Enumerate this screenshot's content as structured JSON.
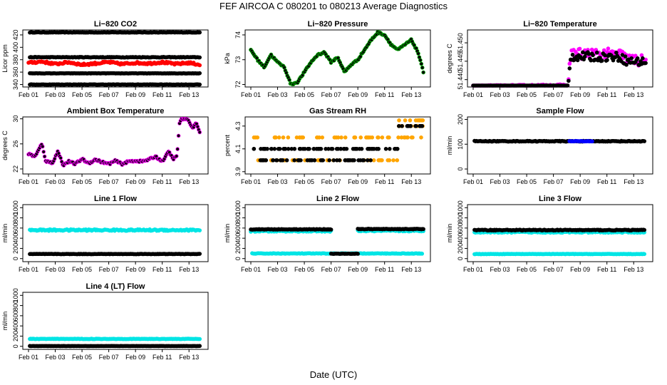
{
  "title": "FEF   AIRCOA C   080201 to 080213   Average Diagnostics",
  "x_axis_label": "Date (UTC)",
  "colors": {
    "black": "#000000",
    "red": "#ff0000",
    "magenta": "#ff00ff",
    "green": "#00aa00",
    "orange": "#ffa500",
    "blue": "#0000ff",
    "cyan": "#00e5e5"
  },
  "chart_data": [
    {
      "id": "co2",
      "type": "scatter",
      "title": "Li−820 CO2",
      "ylabel": "Licor ppm",
      "x_ticks": [
        "Feb 01",
        "Feb 03",
        "Feb 05",
        "Feb 07",
        "Feb 09",
        "Feb 11",
        "Feb 13"
      ],
      "xlim": [
        0,
        13
      ],
      "ylim": [
        336,
        428
      ],
      "y_ticks": [
        340,
        360,
        380,
        400,
        420
      ],
      "series": [
        {
          "name": "ref 1",
          "color": "black",
          "kind": "flat",
          "value": 424,
          "noise": 0.3
        },
        {
          "name": "ref 2",
          "color": "black",
          "kind": "flat",
          "value": 384,
          "noise": 0.5
        },
        {
          "name": "sample",
          "color": "red",
          "kind": "anchors",
          "noise": 1.6,
          "anchors": [
            [
              0,
              375
            ],
            [
              1,
              377
            ],
            [
              2,
              373
            ],
            [
              3,
              376
            ],
            [
              4,
              372
            ],
            [
              5,
              374
            ],
            [
              6,
              376
            ],
            [
              7,
              373
            ],
            [
              8,
              375
            ],
            [
              9,
              374
            ],
            [
              10,
              376
            ],
            [
              11,
              373
            ],
            [
              12,
              375
            ],
            [
              12.8,
              372
            ]
          ]
        },
        {
          "name": "ref 3",
          "color": "black",
          "kind": "flat",
          "value": 358,
          "noise": 0.3
        },
        {
          "name": "ref 4",
          "color": "black",
          "kind": "flat",
          "value": 340,
          "noise": 0.3
        }
      ]
    },
    {
      "id": "pressure",
      "type": "scatter",
      "title": "Li−820 Pressure",
      "ylabel": "kPa",
      "x_ticks": [
        "Feb 01",
        "Feb 03",
        "Feb 05",
        "Feb 07",
        "Feb 09",
        "Feb 11",
        "Feb 13"
      ],
      "xlim": [
        0,
        13
      ],
      "ylim": [
        71.9,
        74.2
      ],
      "y_ticks": [
        72.0,
        73.0,
        74.0
      ],
      "series": [
        {
          "name": "pressure",
          "color": "black",
          "edge": "green",
          "kind": "anchors",
          "noise": 0.03,
          "anchors": [
            [
              0,
              73.4
            ],
            [
              0.5,
              73.0
            ],
            [
              1,
              72.7
            ],
            [
              1.5,
              73.2
            ],
            [
              2,
              72.9
            ],
            [
              2.5,
              72.7
            ],
            [
              3,
              72.0
            ],
            [
              3.5,
              72.1
            ],
            [
              4,
              72.5
            ],
            [
              4.5,
              72.9
            ],
            [
              5,
              73.2
            ],
            [
              5.5,
              73.3
            ],
            [
              6,
              72.9
            ],
            [
              6.5,
              73.1
            ],
            [
              7,
              72.5
            ],
            [
              7.5,
              72.8
            ],
            [
              8,
              73.0
            ],
            [
              8.5,
              73.4
            ],
            [
              9,
              73.8
            ],
            [
              9.5,
              74.1
            ],
            [
              10,
              74.0
            ],
            [
              10.5,
              73.6
            ],
            [
              11,
              73.4
            ],
            [
              11.5,
              73.6
            ],
            [
              12,
              73.8
            ],
            [
              12.5,
              73.3
            ],
            [
              12.9,
              72.5
            ]
          ]
        }
      ]
    },
    {
      "id": "licor_temp",
      "type": "scatter",
      "title": "Li−820 Temperature",
      "ylabel": "degrees C",
      "x_ticks": [
        "Feb 01",
        "Feb 03",
        "Feb 05",
        "Feb 07",
        "Feb 09",
        "Feb 11",
        "Feb 13"
      ],
      "xlim": [
        0,
        13
      ],
      "ylim": [
        51.438,
        51.4535
      ],
      "y_ticks": [
        51.44,
        51.445,
        51.45
      ],
      "y_tick_labels": [
        "51.440",
        "51.445",
        "51.450"
      ],
      "series": [
        {
          "name": "hi",
          "color": "magenta",
          "kind": "steps",
          "noise": 0.0016,
          "anchors": [
            [
              0,
              51.4382
            ],
            [
              7.1,
              51.4385
            ],
            [
              7.3,
              51.447
            ],
            [
              11,
              51.4468
            ],
            [
              11.5,
              51.4455
            ],
            [
              12.9,
              51.445
            ]
          ]
        },
        {
          "name": "lo",
          "color": "black",
          "kind": "steps",
          "noise": 0.0012,
          "anchors": [
            [
              0,
              51.4381
            ],
            [
              7.1,
              51.4383
            ],
            [
              7.3,
              51.4463
            ],
            [
              11,
              51.4462
            ],
            [
              11.5,
              51.445
            ],
            [
              12.9,
              51.4448
            ]
          ]
        }
      ]
    },
    {
      "id": "box_temp",
      "type": "scatter",
      "title": "Ambient Box Temperature",
      "ylabel": "degrees C",
      "x_ticks": [
        "Feb 01",
        "Feb 03",
        "Feb 05",
        "Feb 07",
        "Feb 09",
        "Feb 11",
        "Feb 13"
      ],
      "xlim": [
        0,
        13
      ],
      "ylim": [
        21.2,
        30.3
      ],
      "y_ticks": [
        22,
        26,
        30
      ],
      "series": [
        {
          "name": "temp",
          "color": "black",
          "edge": "magenta",
          "kind": "anchors",
          "noise": 0.15,
          "anchors": [
            [
              0,
              24.4
            ],
            [
              0.5,
              24.0
            ],
            [
              1,
              26.0
            ],
            [
              1.3,
              23.2
            ],
            [
              1.8,
              23.0
            ],
            [
              2.2,
              24.8
            ],
            [
              2.6,
              22.6
            ],
            [
              3,
              23.2
            ],
            [
              3.5,
              22.8
            ],
            [
              4,
              23.6
            ],
            [
              4.5,
              22.9
            ],
            [
              5,
              23.5
            ],
            [
              5.5,
              23.1
            ],
            [
              6,
              22.8
            ],
            [
              6.5,
              23.3
            ],
            [
              7,
              22.8
            ],
            [
              7.5,
              23.2
            ],
            [
              8,
              23.3
            ],
            [
              8.5,
              23.2
            ],
            [
              9,
              23.5
            ],
            [
              9.5,
              24.0
            ],
            [
              10,
              23.2
            ],
            [
              10.5,
              24.8
            ],
            [
              10.8,
              23.6
            ],
            [
              11.1,
              24.0
            ],
            [
              11.3,
              29.5
            ],
            [
              11.5,
              30.0
            ],
            [
              12,
              29.7
            ],
            [
              12.3,
              28.4
            ],
            [
              12.5,
              29.4
            ],
            [
              12.8,
              28.0
            ]
          ]
        }
      ]
    },
    {
      "id": "rh",
      "type": "scatter",
      "title": "Gas Stream RH",
      "ylabel": "percent",
      "x_ticks": [
        "Feb 01",
        "Feb 03",
        "Feb 05",
        "Feb 07",
        "Feb 09",
        "Feb 11",
        "Feb 13"
      ],
      "xlim": [
        0,
        13
      ],
      "ylim": [
        3.88,
        4.38
      ],
      "y_ticks": [
        3.9,
        4.1,
        4.3
      ],
      "series": [
        {
          "name": "rh_orange",
          "color": "orange",
          "kind": "levels",
          "levels": [
            [
              0,
              11,
              4.0
            ],
            [
              0,
              11,
              4.2
            ],
            [
              11,
              12.9,
              4.2
            ],
            [
              11,
              12.9,
              4.3
            ],
            [
              11,
              12.9,
              4.35
            ]
          ]
        },
        {
          "name": "rh_black",
          "color": "black",
          "kind": "levels",
          "levels": [
            [
              0,
              11,
              4.1
            ],
            [
              11,
              12.9,
              4.3
            ],
            [
              0.5,
              5,
              4.0
            ],
            [
              5,
              9,
              4.0
            ]
          ]
        }
      ]
    },
    {
      "id": "sample_flow",
      "type": "scatter",
      "title": "Sample Flow",
      "ylabel": "ml/min",
      "x_ticks": [
        "Feb 01",
        "Feb 03",
        "Feb 05",
        "Feb 07",
        "Feb 09",
        "Feb 11",
        "Feb 13"
      ],
      "xlim": [
        0,
        13
      ],
      "ylim": [
        -20,
        210
      ],
      "y_ticks": [
        0,
        100,
        200
      ],
      "series": [
        {
          "name": "flow",
          "color": "black",
          "kind": "flat",
          "value": 112,
          "noise": 1.5
        },
        {
          "name": "flow_blue",
          "color": "blue",
          "kind": "segment",
          "from": 7.2,
          "to": 8.9,
          "value": 112,
          "noise": 1.0
        }
      ]
    },
    {
      "id": "line1",
      "type": "scatter",
      "title": "Line 1 Flow",
      "ylabel": "ml/min",
      "x_ticks": [
        "Feb 01",
        "Feb 03",
        "Feb 05",
        "Feb 07",
        "Feb 09",
        "Feb 11",
        "Feb 13"
      ],
      "xlim": [
        0,
        13
      ],
      "ylim": [
        -60,
        1060
      ],
      "y_ticks": [
        0,
        200,
        400,
        600,
        800,
        1000
      ],
      "series": [
        {
          "name": "high",
          "color": "cyan",
          "kind": "flat",
          "value": 560,
          "noise": 15
        },
        {
          "name": "low",
          "color": "black",
          "kind": "flat",
          "value": 90,
          "noise": 4
        }
      ]
    },
    {
      "id": "line2",
      "type": "scatter",
      "title": "Line 2 Flow",
      "ylabel": "ml/min",
      "x_ticks": [
        "Feb 01",
        "Feb 03",
        "Feb 05",
        "Feb 07",
        "Feb 09",
        "Feb 11",
        "Feb 13"
      ],
      "xlim": [
        0,
        13
      ],
      "ylim": [
        -60,
        1060
      ],
      "y_ticks": [
        0,
        200,
        400,
        600,
        800,
        1000
      ],
      "series": [
        {
          "name": "high_c",
          "color": "cyan",
          "kind": "segment",
          "from": 0,
          "to": 6,
          "value": 540,
          "noise": 12
        },
        {
          "name": "high_c2",
          "color": "cyan",
          "kind": "segment",
          "from": 8,
          "to": 12.9,
          "value": 545,
          "noise": 12
        },
        {
          "name": "high_b",
          "color": "black",
          "kind": "segment",
          "from": 0,
          "to": 6,
          "value": 575,
          "noise": 6
        },
        {
          "name": "high_b2",
          "color": "black",
          "kind": "segment",
          "from": 8,
          "to": 12.9,
          "value": 580,
          "noise": 6
        },
        {
          "name": "low_c",
          "color": "cyan",
          "kind": "flat",
          "value": 100,
          "noise": 5
        },
        {
          "name": "low_b",
          "color": "black",
          "kind": "segment",
          "from": 6,
          "to": 8,
          "value": 95,
          "noise": 3
        }
      ]
    },
    {
      "id": "line3",
      "type": "scatter",
      "title": "Line 3 Flow",
      "ylabel": "ml/min",
      "x_ticks": [
        "Feb 01",
        "Feb 03",
        "Feb 05",
        "Feb 07",
        "Feb 09",
        "Feb 11",
        "Feb 13"
      ],
      "xlim": [
        0,
        13
      ],
      "ylim": [
        -60,
        1060
      ],
      "y_ticks": [
        0,
        200,
        400,
        600,
        800,
        1000
      ],
      "series": [
        {
          "name": "high_c",
          "color": "cyan",
          "kind": "flat",
          "value": 520,
          "noise": 12
        },
        {
          "name": "high_b",
          "color": "black",
          "kind": "flat",
          "value": 560,
          "noise": 8
        },
        {
          "name": "low_c",
          "color": "cyan",
          "kind": "flat",
          "value": 90,
          "noise": 4
        }
      ]
    },
    {
      "id": "line4",
      "type": "scatter",
      "title": "Line 4 (LT) Flow",
      "ylabel": "ml/min",
      "x_ticks": [
        "Feb 01",
        "Feb 03",
        "Feb 05",
        "Feb 07",
        "Feb 09",
        "Feb 11",
        "Feb 13"
      ],
      "xlim": [
        0,
        13
      ],
      "ylim": [
        -60,
        1060
      ],
      "y_ticks": [
        0,
        200,
        400,
        600,
        800,
        1000
      ],
      "series": [
        {
          "name": "high_c",
          "color": "cyan",
          "kind": "flat",
          "value": 145,
          "noise": 4
        },
        {
          "name": "low_b",
          "color": "black",
          "kind": "flat",
          "value": 5,
          "noise": 2
        }
      ]
    }
  ]
}
